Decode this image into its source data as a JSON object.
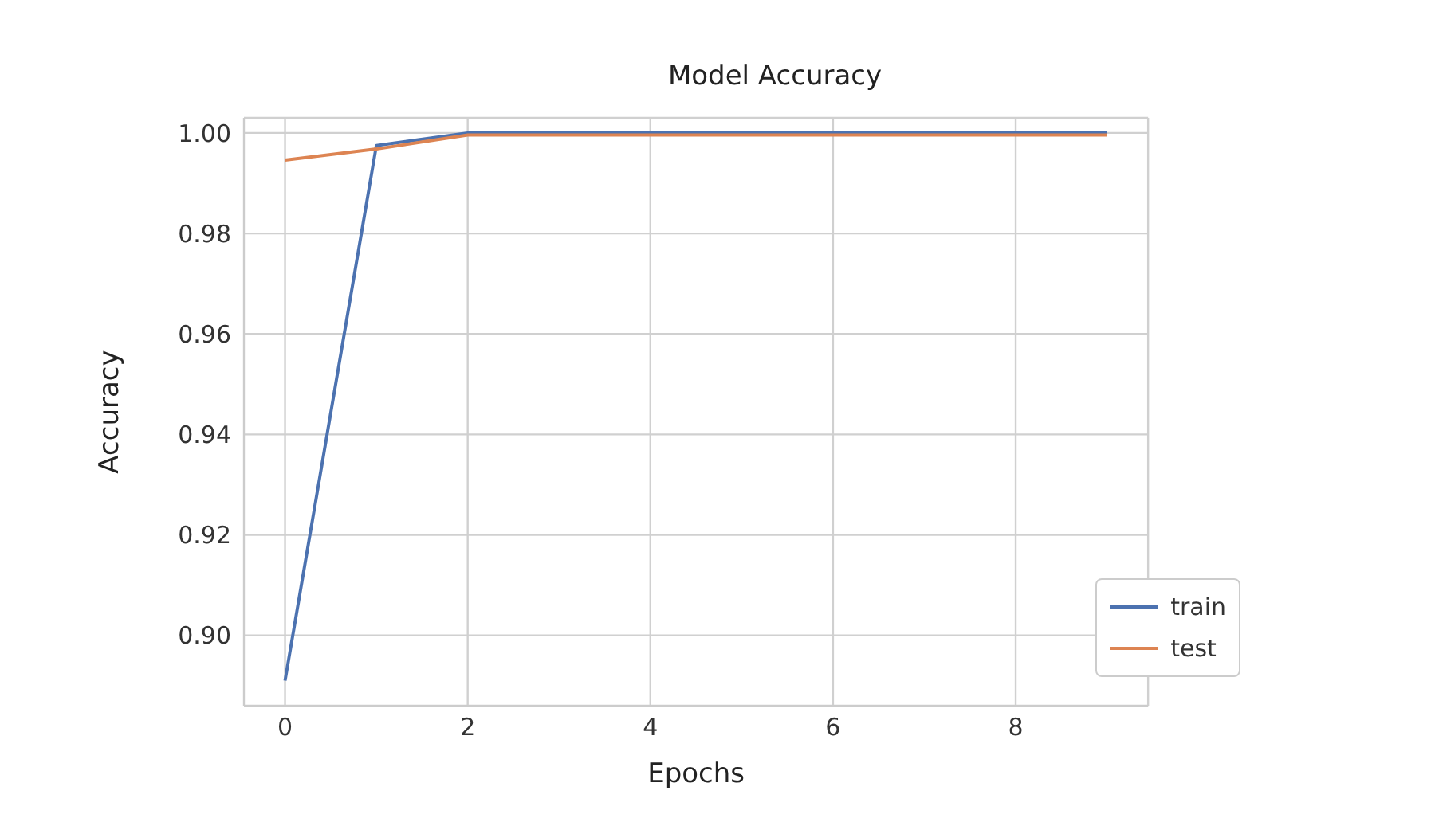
{
  "chart_data": {
    "type": "line",
    "title": "Model Accuracy",
    "xlabel": "Epochs",
    "ylabel": "Accuracy",
    "x": [
      0,
      1,
      2,
      3,
      4,
      5,
      6,
      7,
      8,
      9
    ],
    "series": [
      {
        "name": "train",
        "color": "#4c72b0",
        "values": [
          0.891,
          0.9975,
          1.0,
          1.0,
          1.0,
          1.0,
          1.0,
          1.0,
          1.0,
          1.0
        ]
      },
      {
        "name": "test",
        "color": "#dd8452",
        "values": [
          0.9946,
          0.9968,
          0.9996,
          0.9996,
          0.9996,
          0.9996,
          0.9996,
          0.9996,
          0.9996,
          0.9996
        ]
      }
    ],
    "xlim": [
      -0.45,
      9.45
    ],
    "xticks": [
      0,
      2,
      4,
      6,
      8
    ],
    "ylim": [
      0.886,
      1.003
    ],
    "yticks": [
      {
        "value": 0.9,
        "label": "0.90"
      },
      {
        "value": 0.92,
        "label": "0.92"
      },
      {
        "value": 0.94,
        "label": "0.94"
      },
      {
        "value": 0.96,
        "label": "0.96"
      },
      {
        "value": 0.98,
        "label": "0.98"
      },
      {
        "value": 1.0,
        "label": "1.00"
      }
    ],
    "grid": true,
    "legend": "bottom right",
    "marker": "none",
    "line_style": "solid"
  }
}
